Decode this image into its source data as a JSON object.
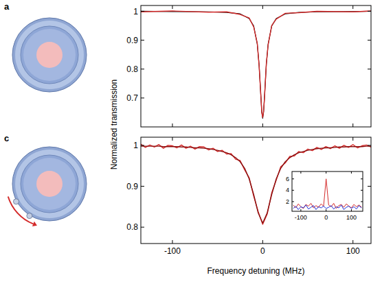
{
  "chart_data": [
    {
      "type": "line",
      "title": "a",
      "y_label": "Normalized transmission",
      "x": [
        -135,
        -100,
        -60,
        -40,
        -25,
        -15,
        -10,
        -6,
        -4,
        -2,
        -1,
        0,
        1,
        2,
        4,
        6,
        10,
        15,
        25,
        40,
        60,
        100,
        120
      ],
      "series": [
        {
          "color": "#000000",
          "values": [
            1.0,
            0.999,
            0.998,
            0.996,
            0.991,
            0.975,
            0.949,
            0.886,
            0.815,
            0.704,
            0.652,
            0.63,
            0.652,
            0.704,
            0.815,
            0.886,
            0.949,
            0.975,
            0.991,
            0.996,
            0.998,
            0.999,
            1.0
          ]
        },
        {
          "color": "#d42a2a",
          "values": [
            0.998,
            1.001,
            0.997,
            0.998,
            0.989,
            0.977,
            0.946,
            0.889,
            0.812,
            0.707,
            0.649,
            0.633,
            0.655,
            0.701,
            0.818,
            0.883,
            0.951,
            0.973,
            0.993,
            0.995,
            1.0,
            0.998,
            1.001
          ]
        }
      ],
      "xlim": [
        -135,
        120
      ],
      "ylim": [
        0.6,
        1.02
      ],
      "xticks": [
        -100,
        0,
        100
      ],
      "yticks": [
        0.7,
        0.8,
        0.9,
        1
      ],
      "grid": false,
      "tick_labels": "y"
    },
    {
      "type": "line",
      "title": "c",
      "x_label": "Frequency detuning (MHz)",
      "x": [
        -135,
        -130,
        -125,
        -120,
        -115,
        -110,
        -105,
        -100,
        -95,
        -90,
        -85,
        -80,
        -75,
        -70,
        -65,
        -60,
        -55,
        -50,
        -45,
        -40,
        -35,
        -30,
        -25,
        -20,
        -15,
        -10,
        -5,
        0,
        5,
        10,
        15,
        20,
        25,
        30,
        35,
        40,
        45,
        50,
        55,
        60,
        65,
        70,
        75,
        80,
        85,
        90,
        95,
        100,
        105,
        110,
        115,
        120
      ],
      "series": [
        {
          "color": "#d42a2a",
          "values": [
            1.003,
            0.995,
            1.001,
            0.996,
            1.002,
            0.993,
            1.0,
            0.999,
            0.994,
            1.001,
            0.993,
            0.998,
            0.991,
            0.997,
            0.996,
            0.989,
            0.993,
            0.985,
            0.988,
            0.979,
            0.98,
            0.966,
            0.963,
            0.94,
            0.921,
            0.876,
            0.838,
            0.807,
            0.832,
            0.884,
            0.915,
            0.948,
            0.957,
            0.973,
            0.974,
            0.985,
            0.982,
            0.991,
            0.987,
            0.995,
            0.99,
            0.997,
            0.992,
            0.999,
            0.993,
            1.0,
            0.995,
            1.002,
            0.994,
            0.999,
            1.001,
            0.996
          ]
        },
        {
          "color": "#8a1010",
          "values": [
            0.998,
            0.998,
            0.998,
            0.998,
            0.998,
            0.997,
            0.997,
            0.997,
            0.997,
            0.996,
            0.996,
            0.995,
            0.994,
            0.994,
            0.993,
            0.992,
            0.99,
            0.988,
            0.985,
            0.982,
            0.977,
            0.97,
            0.96,
            0.944,
            0.918,
            0.88,
            0.835,
            0.81,
            0.835,
            0.88,
            0.918,
            0.944,
            0.96,
            0.97,
            0.977,
            0.982,
            0.985,
            0.988,
            0.99,
            0.992,
            0.993,
            0.994,
            0.994,
            0.995,
            0.996,
            0.996,
            0.997,
            0.997,
            0.997,
            0.997,
            0.998,
            0.998
          ]
        }
      ],
      "xlim": [
        -135,
        120
      ],
      "ylim": [
        0.76,
        1.02
      ],
      "xticks": [
        -100,
        0,
        100
      ],
      "yticks": [
        0.8,
        0.9,
        1
      ],
      "grid": false
    },
    {
      "type": "line",
      "x": [
        -130,
        -120,
        -110,
        -100,
        -90,
        -80,
        -70,
        -60,
        -50,
        -40,
        -30,
        -20,
        -10,
        0,
        10,
        20,
        30,
        40,
        50,
        60,
        70,
        80,
        90,
        100,
        110,
        120,
        130,
        140
      ],
      "series": [
        {
          "color": "#d42a2a",
          "values": [
            1.4,
            0.9,
            1.6,
            1.1,
            0.8,
            1.5,
            1.2,
            1.7,
            0.9,
            1.3,
            1.0,
            1.6,
            1.2,
            6.0,
            1.4,
            1.1,
            1.7,
            0.8,
            1.3,
            1.5,
            1.0,
            1.6,
            1.2,
            0.9,
            1.5,
            1.1,
            1.4,
            1.0
          ]
        },
        {
          "color": "#1f2fd6",
          "values": [
            0.8,
            1.2,
            0.6,
            1.1,
            0.9,
            1.4,
            0.7,
            1.0,
            1.3,
            0.6,
            1.1,
            0.9,
            1.2,
            0.8,
            1.0,
            1.3,
            0.7,
            1.1,
            0.9,
            1.4,
            0.6,
            1.0,
            1.2,
            0.8,
            1.1,
            0.7,
            1.3,
            0.9
          ]
        }
      ],
      "xlim": [
        -135,
        145
      ],
      "ylim": [
        0.3,
        7.3
      ],
      "xticks": [
        -100,
        0,
        100
      ],
      "yticks": [
        2,
        4,
        6
      ],
      "grid": false
    }
  ]
}
